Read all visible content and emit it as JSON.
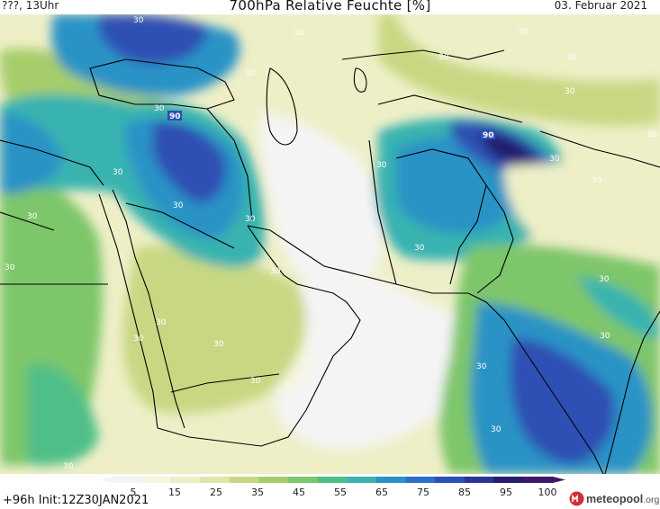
{
  "header": {
    "left_label": "???, 13Uhr",
    "title": "700hPa Relative Feuchte [%]",
    "date": "03. Februar 2021"
  },
  "footer": {
    "run_info": "+96h Init:12Z30JAN2021",
    "brand_name": "meteopool",
    "brand_tld": ".org"
  },
  "legend": {
    "ticks": [
      "5",
      "15",
      "25",
      "35",
      "45",
      "55",
      "65",
      "75",
      "85",
      "95",
      "100"
    ],
    "colors": [
      "#f4f4f4",
      "#f7f6dc",
      "#eeefc7",
      "#e2e4a8",
      "#c8d882",
      "#a6cd6b",
      "#7ec66b",
      "#4fbf88",
      "#39b3b0",
      "#2a93c6",
      "#2d6fc8",
      "#2e4fb4",
      "#2b3595",
      "#241e6f",
      "#3f176a"
    ]
  },
  "map_labels": {
    "contour_90_a": "90",
    "contour_90_b": "90",
    "contour_30": [
      "30",
      "30",
      "30",
      "30",
      "30",
      "30",
      "30",
      "30",
      "30",
      "30",
      "30",
      "30",
      "30",
      "30",
      "30",
      "30",
      "30",
      "30",
      "30",
      "30",
      "30",
      "30",
      "30",
      "30",
      "30",
      "30",
      "30",
      "30"
    ]
  },
  "colors": {
    "dry": "#f4f4f4",
    "light_yellow": "#eeefc7",
    "olive": "#c8d882",
    "green": "#7ec66b",
    "teal": "#39b3b0",
    "blue": "#2a93c6",
    "deep_blue": "#2e4fb4",
    "navy": "#241e6f",
    "border": "#000000"
  }
}
